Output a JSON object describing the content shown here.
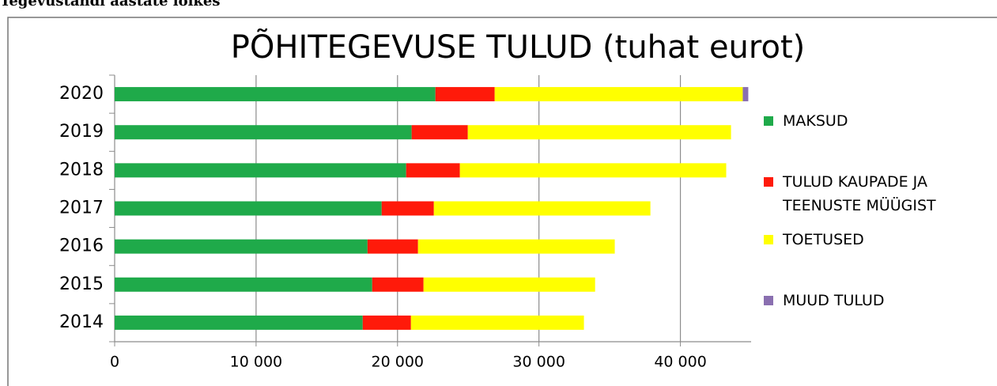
{
  "caption": "Tegevustandi aastate lõikes",
  "chart_data": {
    "type": "stacked-barh",
    "title": "PÕHITEGEVUSE TULUD (tuhat eurot)",
    "categories": [
      "2014",
      "2015",
      "2016",
      "2017",
      "2018",
      "2019",
      "2020"
    ],
    "series": [
      {
        "name": "MAKSUD",
        "color": "#1faa4a",
        "values": [
          17540,
          18210,
          17880,
          18880,
          20610,
          21000,
          22680
        ]
      },
      {
        "name": "TULUD KAUPADE JA TEENUSTE MÜÜGIST",
        "color": "#ff1a0a",
        "values": [
          3410,
          3630,
          3570,
          3690,
          3800,
          3970,
          4190
        ]
      },
      {
        "name": "TOETUSED",
        "color": "#ffff00",
        "values": [
          12230,
          12130,
          13910,
          15310,
          18830,
          18610,
          17540
        ]
      },
      {
        "name": "MUUD TULUD",
        "color": "#8a6fb0",
        "values": [
          0,
          0,
          0,
          0,
          0,
          0,
          390
        ]
      }
    ],
    "xlim": [
      0,
      45000
    ],
    "xticks": [
      0,
      {
        "value": 10000,
        "label": "10 000"
      },
      {
        "value": 20000,
        "label": "20 000"
      },
      {
        "value": 30000,
        "label": "30 000"
      },
      {
        "value": 40000,
        "label": "40 000"
      }
    ],
    "grid": true,
    "legend": "right"
  }
}
